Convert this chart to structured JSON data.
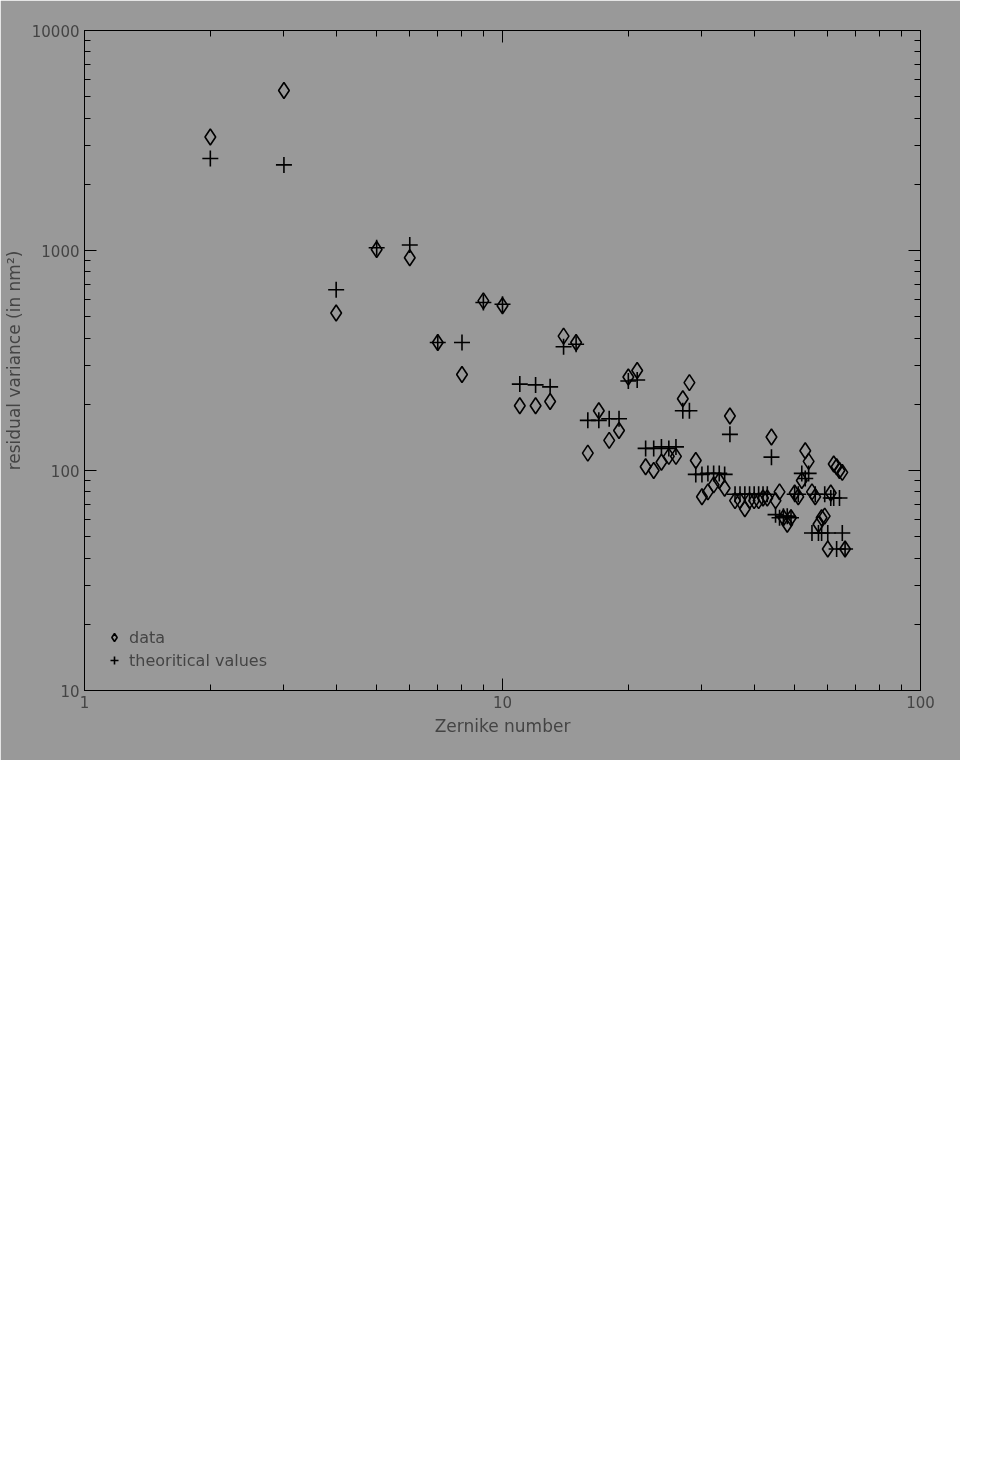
{
  "chart_data": {
    "type": "scatter",
    "xlabel": "Zernike number",
    "ylabel": "residual variance (in nm²)",
    "x": [
      2,
      3,
      4,
      5,
      6,
      7,
      8,
      9,
      10,
      11,
      12,
      13,
      14,
      15,
      16,
      17,
      18,
      19,
      20,
      21,
      22,
      23,
      24,
      25,
      26,
      27,
      28,
      29,
      30,
      31,
      32,
      33,
      34,
      35,
      36,
      37,
      38,
      39,
      40,
      41,
      42,
      43,
      44,
      45,
      46,
      47,
      48,
      49,
      50,
      51,
      52,
      53,
      54,
      55,
      56,
      57,
      58,
      59,
      60,
      61,
      62,
      63,
      64,
      65,
      66
    ],
    "series": [
      {
        "name": "data",
        "color": "#000000",
        "marker": "diamond",
        "values": [
          3280,
          5340,
          520,
          1010,
          927,
          382,
          273,
          590,
          561,
          197,
          197,
          206,
          408,
          382,
          120,
          187,
          137,
          152,
          266,
          285,
          104,
          100,
          109,
          116,
          116,
          212,
          251,
          111,
          76,
          80,
          86,
          90,
          83,
          177,
          73,
          73,
          67,
          73,
          73,
          73,
          75,
          75,
          142,
          73,
          80,
          61,
          57,
          61,
          79,
          76,
          90,
          123,
          110,
          80,
          76,
          57,
          61,
          62,
          44,
          79,
          107,
          104,
          100,
          98,
          44
        ]
      },
      {
        "name": "theoritical values",
        "color": "#000000",
        "marker": "cross",
        "values": [
          2620,
          2450,
          663,
          1030,
          1060,
          382,
          382,
          580,
          570,
          247,
          245,
          240,
          365,
          375,
          169,
          169,
          172,
          172,
          255,
          258,
          126,
          126,
          128,
          126,
          128,
          187,
          187,
          96,
          96,
          97,
          97,
          97,
          96,
          146,
          78,
          78,
          78,
          78,
          78,
          78,
          78,
          78,
          115,
          63,
          61,
          62,
          62,
          61,
          78,
          78,
          97,
          92,
          97,
          52,
          78,
          52,
          52,
          78,
          52,
          75,
          75,
          44,
          75,
          52,
          44
        ]
      }
    ],
    "log": "xy",
    "xlim": [
      1,
      100
    ],
    "xticks": [
      1,
      10,
      100
    ],
    "ylim": [
      10,
      10000
    ],
    "yticks": [
      10,
      100,
      1000,
      10000
    ],
    "grid": false,
    "legend": "bottom left"
  }
}
